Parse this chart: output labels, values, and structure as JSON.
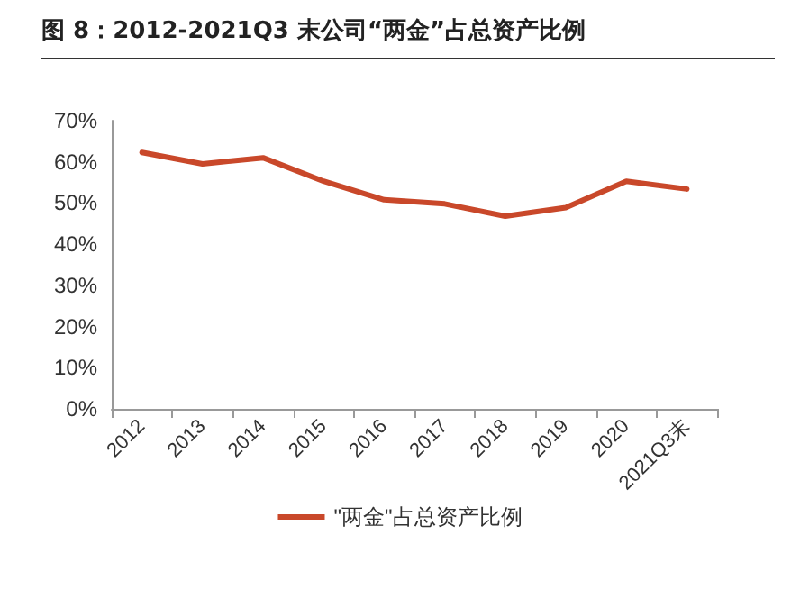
{
  "chart_data": {
    "type": "line",
    "title": "图 8：2012-2021Q3 末公司“两金”占总资产比例",
    "categories": [
      "2012",
      "2013",
      "2014",
      "2015",
      "2016",
      "2017",
      "2018",
      "2019",
      "2020",
      "2021Q3末"
    ],
    "series": [
      {
        "name": "\"两金\"占总资产比例",
        "color": "#c9482a",
        "values": [
          62.3,
          59.5,
          61.0,
          55.3,
          50.8,
          49.8,
          46.8,
          48.9,
          55.3,
          53.4
        ]
      }
    ],
    "ylim": [
      0,
      70
    ],
    "yticks": [
      {
        "value": 0,
        "label": "0%"
      },
      {
        "value": 10,
        "label": "10%"
      },
      {
        "value": 20,
        "label": "20%"
      },
      {
        "value": 30,
        "label": "30%"
      },
      {
        "value": 40,
        "label": "40%"
      },
      {
        "value": 50,
        "label": "50%"
      },
      {
        "value": 60,
        "label": "60%"
      },
      {
        "value": 70,
        "label": "70%"
      }
    ],
    "grid": false,
    "legend": "bottom",
    "marker": "none",
    "line_style": "solid"
  }
}
